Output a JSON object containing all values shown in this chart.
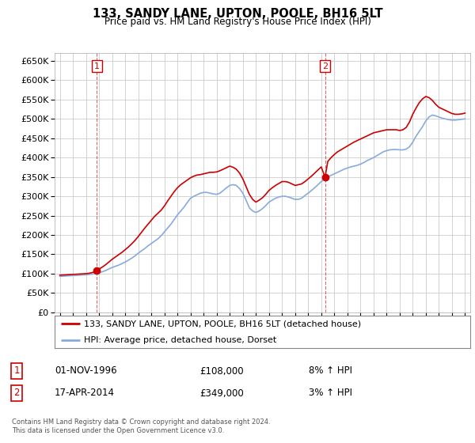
{
  "title": "133, SANDY LANE, UPTON, POOLE, BH16 5LT",
  "subtitle": "Price paid vs. HM Land Registry's House Price Index (HPI)",
  "legend_line1": "133, SANDY LANE, UPTON, POOLE, BH16 5LT (detached house)",
  "legend_line2": "HPI: Average price, detached house, Dorset",
  "footnote": "Contains HM Land Registry data © Crown copyright and database right 2024.\nThis data is licensed under the Open Government Licence v3.0.",
  "sale1_date": "01-NOV-1996",
  "sale1_price": "£108,000",
  "sale1_hpi": "8% ↑ HPI",
  "sale2_date": "17-APR-2014",
  "sale2_price": "£349,000",
  "sale2_hpi": "3% ↑ HPI",
  "property_color": "#cc0000",
  "hpi_color": "#88aadd",
  "sale1_year": 1996.83,
  "sale1_value": 108000,
  "sale2_year": 2014.29,
  "sale2_value": 349000,
  "ylim": [
    0,
    670000
  ],
  "yticks": [
    0,
    50000,
    100000,
    150000,
    200000,
    250000,
    300000,
    350000,
    400000,
    450000,
    500000,
    550000,
    600000,
    650000
  ],
  "xlim_start": 1993.6,
  "xlim_end": 2025.4,
  "background_color": "#ffffff",
  "grid_color": "#cccccc",
  "hpi_x": [
    1994.0,
    1994.25,
    1994.5,
    1994.75,
    1995.0,
    1995.25,
    1995.5,
    1995.75,
    1996.0,
    1996.25,
    1996.5,
    1996.75,
    1997.0,
    1997.25,
    1997.5,
    1997.75,
    1998.0,
    1998.25,
    1998.5,
    1998.75,
    1999.0,
    1999.25,
    1999.5,
    1999.75,
    2000.0,
    2000.25,
    2000.5,
    2000.75,
    2001.0,
    2001.25,
    2001.5,
    2001.75,
    2002.0,
    2002.25,
    2002.5,
    2002.75,
    2003.0,
    2003.25,
    2003.5,
    2003.75,
    2004.0,
    2004.25,
    2004.5,
    2004.75,
    2005.0,
    2005.25,
    2005.5,
    2005.75,
    2006.0,
    2006.25,
    2006.5,
    2006.75,
    2007.0,
    2007.25,
    2007.5,
    2007.75,
    2008.0,
    2008.25,
    2008.5,
    2008.75,
    2009.0,
    2009.25,
    2009.5,
    2009.75,
    2010.0,
    2010.25,
    2010.5,
    2010.75,
    2011.0,
    2011.25,
    2011.5,
    2011.75,
    2012.0,
    2012.25,
    2012.5,
    2012.75,
    2013.0,
    2013.25,
    2013.5,
    2013.75,
    2014.0,
    2014.25,
    2014.5,
    2014.75,
    2015.0,
    2015.25,
    2015.5,
    2015.75,
    2016.0,
    2016.25,
    2016.5,
    2016.75,
    2017.0,
    2017.25,
    2017.5,
    2017.75,
    2018.0,
    2018.25,
    2018.5,
    2018.75,
    2019.0,
    2019.25,
    2019.5,
    2019.75,
    2020.0,
    2020.25,
    2020.5,
    2020.75,
    2021.0,
    2021.25,
    2021.5,
    2021.75,
    2022.0,
    2022.25,
    2022.5,
    2022.75,
    2023.0,
    2023.25,
    2023.5,
    2023.75,
    2024.0,
    2024.25,
    2024.5,
    2024.75,
    2025.0
  ],
  "hpi_y": [
    93000,
    93500,
    94000,
    94500,
    95000,
    95500,
    96000,
    96500,
    97000,
    98000,
    99000,
    100000,
    102000,
    105000,
    108000,
    112000,
    116000,
    119000,
    122000,
    126000,
    130000,
    135000,
    140000,
    146000,
    153000,
    159000,
    165000,
    172000,
    178000,
    184000,
    190000,
    198000,
    208000,
    218000,
    228000,
    240000,
    252000,
    262000,
    272000,
    284000,
    295000,
    300000,
    304000,
    308000,
    310000,
    310000,
    308000,
    306000,
    305000,
    308000,
    315000,
    322000,
    328000,
    330000,
    328000,
    320000,
    308000,
    290000,
    270000,
    262000,
    258000,
    262000,
    268000,
    276000,
    285000,
    290000,
    295000,
    298000,
    300000,
    300000,
    298000,
    295000,
    292000,
    292000,
    295000,
    302000,
    308000,
    315000,
    322000,
    330000,
    338000,
    345000,
    350000,
    354000,
    358000,
    362000,
    366000,
    370000,
    373000,
    376000,
    378000,
    380000,
    383000,
    387000,
    392000,
    396000,
    400000,
    405000,
    410000,
    415000,
    418000,
    420000,
    421000,
    421000,
    420000,
    420000,
    422000,
    428000,
    440000,
    455000,
    468000,
    480000,
    495000,
    505000,
    510000,
    508000,
    505000,
    502000,
    500000,
    498000,
    497000,
    497000,
    498000,
    499000,
    500000
  ],
  "prop_x": [
    1994.0,
    1994.25,
    1994.5,
    1994.75,
    1995.0,
    1995.25,
    1995.5,
    1995.75,
    1996.0,
    1996.25,
    1996.5,
    1996.75,
    1996.83,
    1997.0,
    1997.25,
    1997.5,
    1997.75,
    1998.0,
    1998.25,
    1998.5,
    1998.75,
    1999.0,
    1999.25,
    1999.5,
    1999.75,
    2000.0,
    2000.25,
    2000.5,
    2000.75,
    2001.0,
    2001.25,
    2001.5,
    2001.75,
    2002.0,
    2002.25,
    2002.5,
    2002.75,
    2003.0,
    2003.25,
    2003.5,
    2003.75,
    2004.0,
    2004.25,
    2004.5,
    2004.75,
    2005.0,
    2005.25,
    2005.5,
    2005.75,
    2006.0,
    2006.25,
    2006.5,
    2006.75,
    2007.0,
    2007.25,
    2007.5,
    2007.75,
    2008.0,
    2008.25,
    2008.5,
    2008.75,
    2009.0,
    2009.25,
    2009.5,
    2009.75,
    2010.0,
    2010.25,
    2010.5,
    2010.75,
    2011.0,
    2011.25,
    2011.5,
    2011.75,
    2012.0,
    2012.25,
    2012.5,
    2012.75,
    2013.0,
    2013.25,
    2013.5,
    2013.75,
    2014.0,
    2014.29,
    2014.5,
    2014.75,
    2015.0,
    2015.25,
    2015.5,
    2015.75,
    2016.0,
    2016.25,
    2016.5,
    2016.75,
    2017.0,
    2017.25,
    2017.5,
    2017.75,
    2018.0,
    2018.25,
    2018.5,
    2018.75,
    2019.0,
    2019.25,
    2019.5,
    2019.75,
    2020.0,
    2020.25,
    2020.5,
    2020.75,
    2021.0,
    2021.25,
    2021.5,
    2021.75,
    2022.0,
    2022.25,
    2022.5,
    2022.75,
    2023.0,
    2023.25,
    2023.5,
    2023.75,
    2024.0,
    2024.25,
    2024.5,
    2024.75,
    2025.0
  ],
  "prop_y": [
    96000,
    96500,
    97000,
    97500,
    98000,
    98500,
    99000,
    99500,
    100000,
    101000,
    103000,
    106000,
    108000,
    112000,
    117000,
    123000,
    130000,
    137000,
    143000,
    149000,
    155000,
    162000,
    169000,
    177000,
    186000,
    196000,
    207000,
    218000,
    228000,
    238000,
    248000,
    256000,
    264000,
    275000,
    288000,
    300000,
    312000,
    322000,
    330000,
    336000,
    342000,
    348000,
    352000,
    355000,
    356000,
    358000,
    360000,
    362000,
    362000,
    363000,
    366000,
    370000,
    374000,
    378000,
    375000,
    370000,
    360000,
    345000,
    325000,
    305000,
    292000,
    285000,
    290000,
    296000,
    305000,
    315000,
    322000,
    328000,
    333000,
    338000,
    338000,
    336000,
    332000,
    328000,
    330000,
    332000,
    338000,
    345000,
    352000,
    360000,
    368000,
    376000,
    349000,
    390000,
    400000,
    408000,
    415000,
    420000,
    425000,
    430000,
    435000,
    440000,
    444000,
    448000,
    452000,
    456000,
    460000,
    464000,
    466000,
    468000,
    470000,
    472000,
    472000,
    472000,
    472000,
    470000,
    472000,
    478000,
    492000,
    512000,
    528000,
    542000,
    552000,
    558000,
    555000,
    548000,
    538000,
    530000,
    526000,
    522000,
    518000,
    514000,
    512000,
    512000,
    513000,
    515000
  ]
}
